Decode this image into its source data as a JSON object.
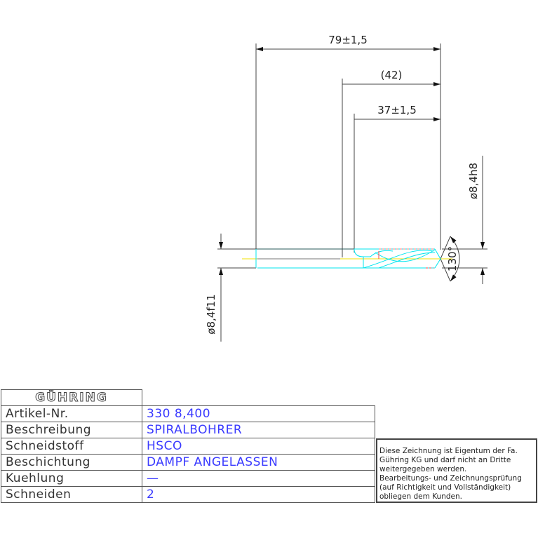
{
  "drawing": {
    "dimensions": {
      "overall_length": "79±1,5",
      "body_length": "(42)",
      "flute_length": "37±1,5",
      "diameter_right": "ø8,4h8",
      "diameter_left": "ø8,4f11",
      "point_angle": "130°"
    },
    "colors": {
      "outline": "#00e5ee",
      "centerline": "#f0e000",
      "dimension": "#333333",
      "hidden": "#ff4040"
    }
  },
  "title_block": {
    "logo": "GÜHRING",
    "rows": [
      {
        "label": "Artikel-Nr.",
        "value": "330 8,400"
      },
      {
        "label": "Beschreibung",
        "value": "SPIRALBOHRER"
      },
      {
        "label": "Schneidstoff",
        "value": "HSCO"
      },
      {
        "label": "Beschichtung",
        "value": "DAMPF ANGELASSEN"
      },
      {
        "label": "Kuehlung",
        "value": "—"
      },
      {
        "label": "Schneiden",
        "value": "2"
      }
    ],
    "note": [
      "Diese Zeichnung ist Eigentum der Fa.",
      "Gühring KG und darf nicht an Dritte",
      "weitergegeben werden.",
      "Bearbeitungs- und Zeichnungsprüfung",
      "(auf Richtigkeit und Vollständigkeit)",
      "obliegen dem Kunden."
    ]
  }
}
